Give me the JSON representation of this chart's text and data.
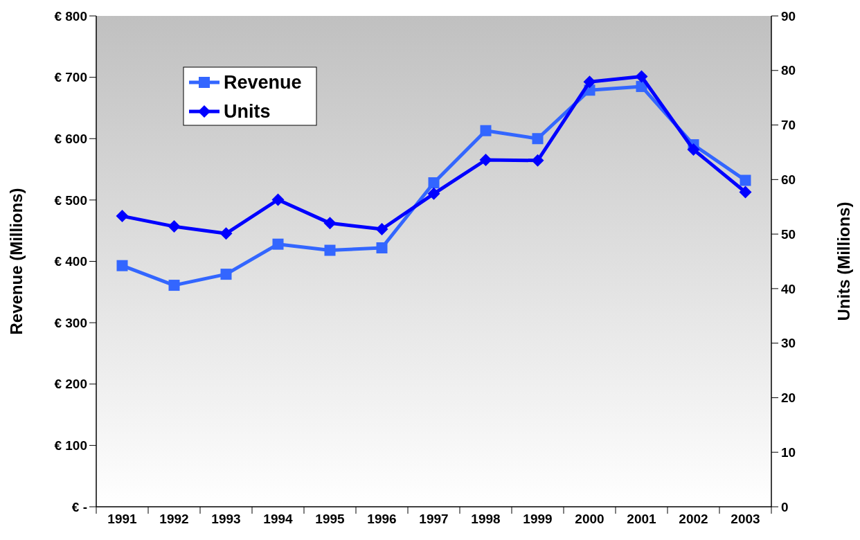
{
  "chart_data": {
    "type": "line",
    "ylabel": "Revenue (Millions)",
    "y2label": "Units (Millions)",
    "categories": [
      "1991",
      "1992",
      "1993",
      "1994",
      "1995",
      "1996",
      "1997",
      "1998",
      "1999",
      "2000",
      "2001",
      "2002",
      "2003"
    ],
    "series": [
      {
        "name": "Revenue",
        "color": "#3366ff",
        "marker": "square",
        "values": [
          393,
          361,
          379,
          428,
          418,
          422,
          528,
          613,
          600,
          679,
          685,
          590,
          532
        ]
      },
      {
        "name": "Units",
        "color": "#0000ff",
        "marker": "diamond",
        "axis": "y2",
        "values": [
          53.3,
          51.4,
          50.1,
          56.3,
          52.0,
          50.9,
          57.4,
          63.6,
          63.5,
          77.9,
          78.9,
          65.5,
          57.7
        ]
      }
    ],
    "ylim": [
      0,
      800
    ],
    "yticks": [
      {
        "value": 0,
        "label": "€ -"
      },
      {
        "value": 100,
        "label": "€ 100"
      },
      {
        "value": 200,
        "label": "€ 200"
      },
      {
        "value": 300,
        "label": "€ 300"
      },
      {
        "value": 400,
        "label": "€ 400"
      },
      {
        "value": 500,
        "label": "€ 500"
      },
      {
        "value": 600,
        "label": "€ 600"
      },
      {
        "value": 700,
        "label": "€ 700"
      },
      {
        "value": 800,
        "label": "€ 800"
      }
    ],
    "y2lim": [
      0,
      90
    ],
    "y2ticks": [
      0,
      10,
      20,
      30,
      40,
      50,
      60,
      70,
      80,
      90
    ],
    "legend": "top left",
    "grid": false,
    "line_style": "solid"
  }
}
